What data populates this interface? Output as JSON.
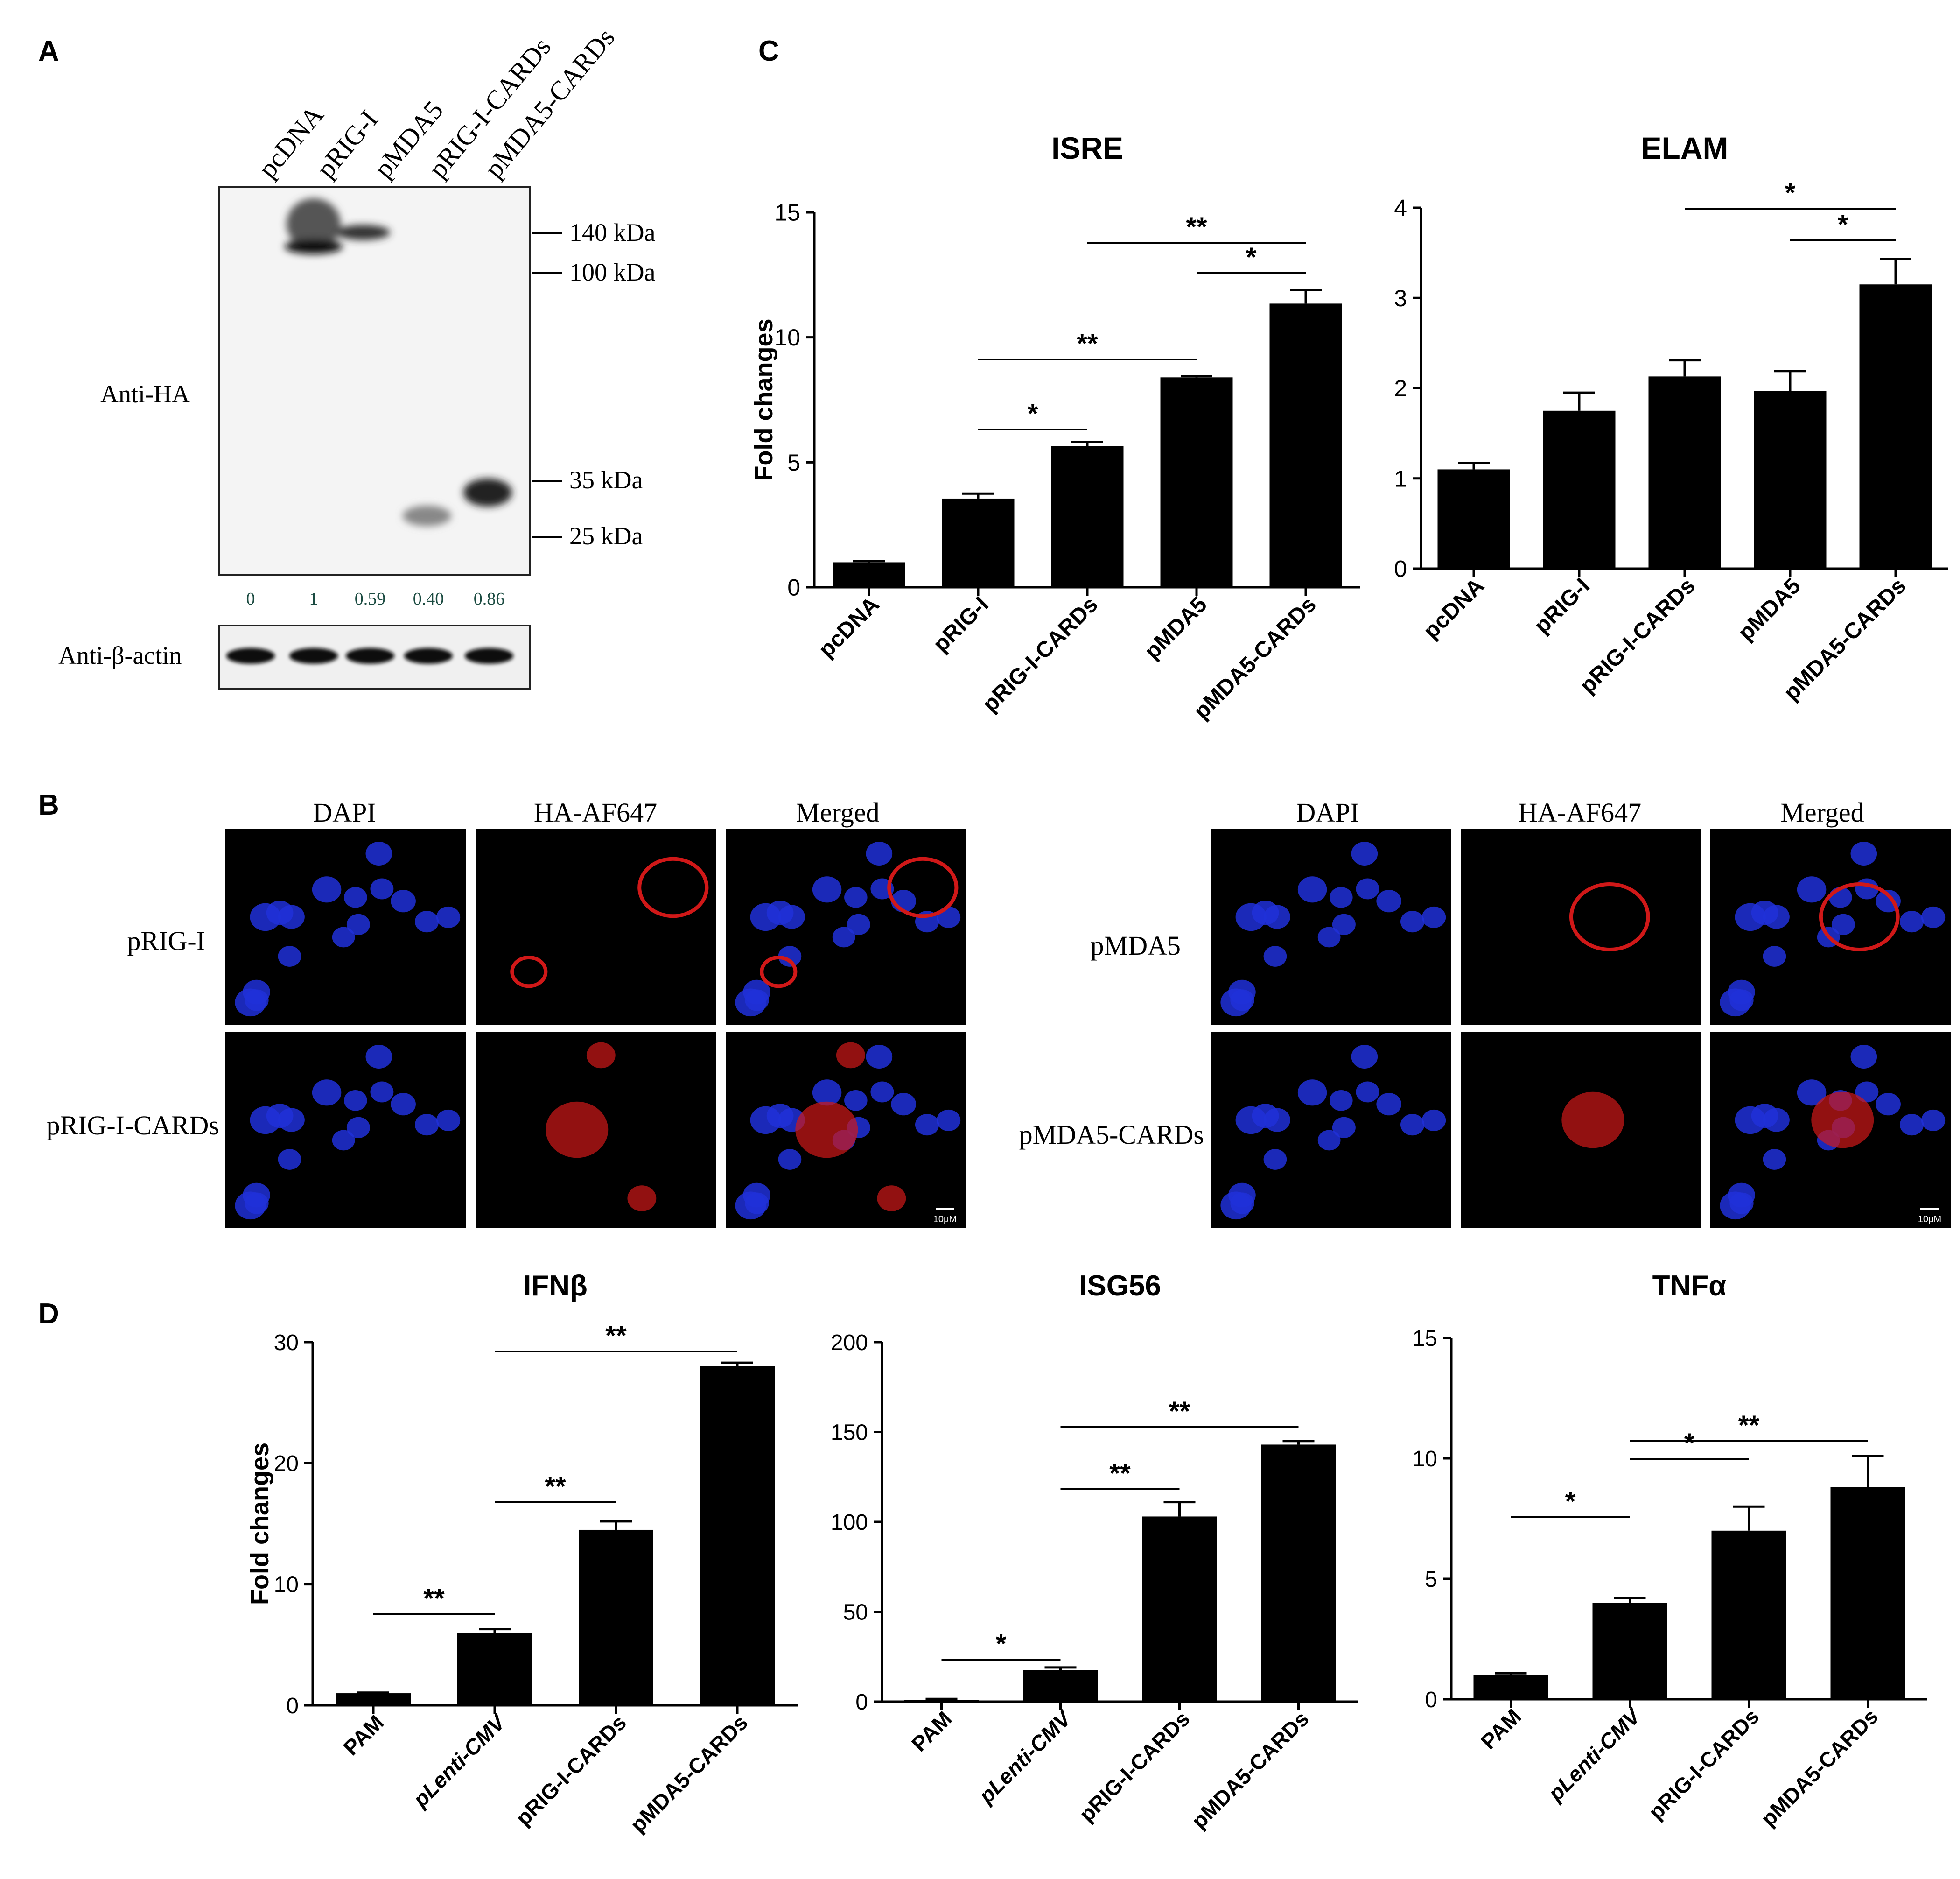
{
  "panels": {
    "A": "A",
    "B": "B",
    "C": "C",
    "D": "D"
  },
  "western_blot": {
    "lanes": [
      "pcDNA",
      "pRIG-I",
      "pMDA5",
      "pRIG-I-CARDs",
      "pMDA5-CARDs"
    ],
    "blot_label": "Anti-HA",
    "markers": [
      "140 kDa",
      "100 kDa",
      "35 kDa",
      "25 kDa"
    ],
    "quantification": [
      "0",
      "1",
      "0.59",
      "0.40",
      "0.86"
    ],
    "loading_control_label": "Anti-β-actin"
  },
  "microscopy": {
    "channels": [
      "DAPI",
      "HA-AF647",
      "Merged"
    ],
    "left_rows": [
      "pRIG-I",
      "pRIG-I-CARDs"
    ],
    "right_rows": [
      "pMDA5",
      "pMDA5-CARDs"
    ],
    "scalebar_label": "10μM",
    "colors": {
      "nucleus": "#2030d8",
      "stain": "#d01818",
      "background": "#000000"
    }
  },
  "chart_data": [
    {
      "id": "C-ISRE",
      "type": "bar",
      "title": "ISRE",
      "ylabel": "Fold changes",
      "categories": [
        "pcDNA",
        "pRIG-I",
        "pRIG-I-CARDs",
        "pMDA5",
        "pMDA5-CARDs"
      ],
      "values": [
        1.0,
        3.55,
        5.65,
        8.4,
        11.35
      ],
      "errors": [
        0.05,
        0.2,
        0.15,
        0.05,
        0.55
      ],
      "ylim": [
        0,
        15
      ],
      "yticks": [
        "0",
        "5",
        "10",
        "15"
      ],
      "significance": [
        {
          "from": 1,
          "to": 2,
          "label": "*"
        },
        {
          "from": 1,
          "to": 3,
          "label": "**"
        },
        {
          "from": 3,
          "to": 4,
          "label": "*"
        },
        {
          "from": 2,
          "to": 4,
          "label": "**"
        }
      ]
    },
    {
      "id": "C-ELAM",
      "type": "bar",
      "title": "ELAM",
      "ylabel": "",
      "categories": [
        "pcDNA",
        "pRIG-I",
        "pRIG-I-CARDs",
        "pMDA5",
        "pMDA5-CARDs"
      ],
      "values": [
        1.1,
        1.75,
        2.13,
        1.97,
        3.15
      ],
      "errors": [
        0.07,
        0.2,
        0.18,
        0.22,
        0.28
      ],
      "ylim": [
        0,
        4
      ],
      "yticks": [
        "0",
        "1",
        "2",
        "3",
        "4"
      ],
      "significance": [
        {
          "from": 3,
          "to": 4,
          "label": "*"
        },
        {
          "from": 2,
          "to": 4,
          "label": "*"
        }
      ]
    },
    {
      "id": "D-IFNb",
      "type": "bar",
      "title": "IFNβ",
      "ylabel": "Fold changes",
      "categories": [
        "PAM",
        "pLenti-CMV",
        "pRIG-I-CARDs",
        "pMDA5-CARDs"
      ],
      "values": [
        1.0,
        6.0,
        14.5,
        28.0
      ],
      "errors": [
        0.05,
        0.3,
        0.7,
        0.3
      ],
      "ylim": [
        0,
        30
      ],
      "yticks": [
        "0",
        "10",
        "20",
        "30"
      ],
      "significance": [
        {
          "from": 0,
          "to": 1,
          "label": "**"
        },
        {
          "from": 1,
          "to": 2,
          "label": "**"
        },
        {
          "from": 1,
          "to": 3,
          "label": "**"
        }
      ]
    },
    {
      "id": "D-ISG56",
      "type": "bar",
      "title": "ISG56",
      "ylabel": "",
      "categories": [
        "PAM",
        "pLenti-CMV",
        "pRIG-I-CARDs",
        "pMDA5-CARDs"
      ],
      "values": [
        1.0,
        17.5,
        103.0,
        143.0
      ],
      "errors": [
        0.5,
        1.5,
        8.0,
        2.0
      ],
      "ylim": [
        0,
        200
      ],
      "yticks": [
        "0",
        "50",
        "100",
        "150",
        "200"
      ],
      "significance": [
        {
          "from": 0,
          "to": 1,
          "label": "*"
        },
        {
          "from": 1,
          "to": 2,
          "label": "**"
        },
        {
          "from": 1,
          "to": 3,
          "label": "**"
        }
      ]
    },
    {
      "id": "D-TNFa",
      "type": "bar",
      "title": "TNFα",
      "ylabel": "",
      "categories": [
        "PAM",
        "pLenti-CMV",
        "pRIG-I-CARDs",
        "pMDA5-CARDs"
      ],
      "values": [
        1.0,
        4.0,
        7.0,
        8.8
      ],
      "errors": [
        0.08,
        0.2,
        1.0,
        1.3
      ],
      "ylim": [
        0,
        15
      ],
      "yticks": [
        "0",
        "5",
        "10",
        "15"
      ],
      "significance": [
        {
          "from": 0,
          "to": 1,
          "label": "*"
        },
        {
          "from": 1,
          "to": 2,
          "label": "*"
        },
        {
          "from": 1,
          "to": 3,
          "label": "**"
        }
      ]
    }
  ]
}
